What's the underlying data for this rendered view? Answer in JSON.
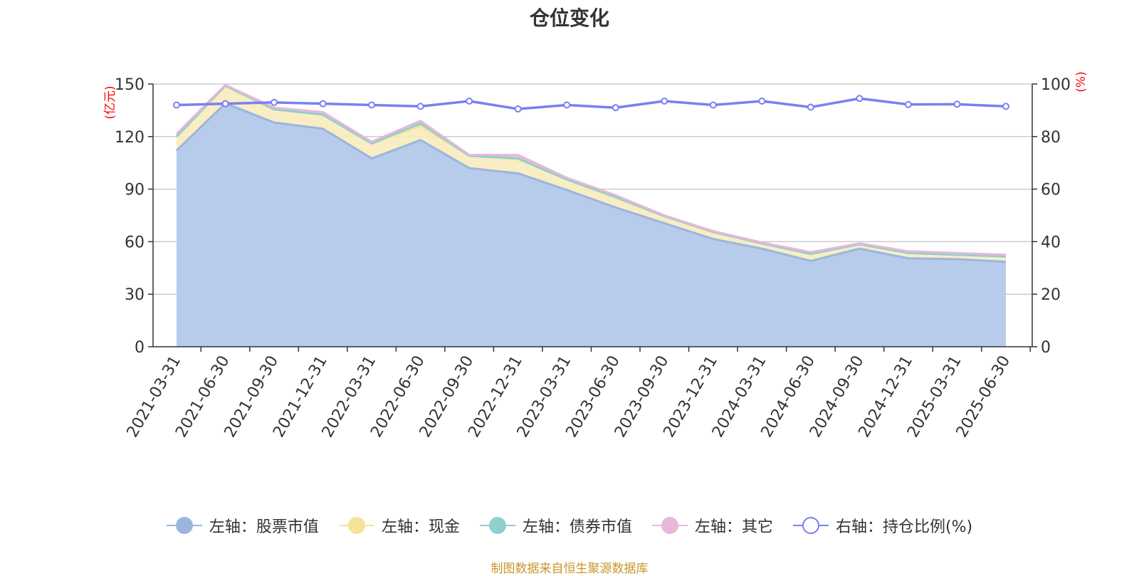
{
  "title": "仓位变化",
  "source_note": "制图数据来自恒生聚源数据库",
  "colors": {
    "stock": "#9bb5de",
    "stock_fill": "#b7cceb",
    "cash": "#f5e39a",
    "cash_fill": "#f8ebbd",
    "bond": "#8fd0cf",
    "other": "#e8b7da",
    "ratio": "#7b7ff2",
    "axis_label": "#ff0000",
    "grid": "#cccccc",
    "source": "#c8962c"
  },
  "legend": [
    {
      "label": "左轴：股票市值",
      "key": "stock",
      "marker": "filled"
    },
    {
      "label": "左轴：现金",
      "key": "cash",
      "marker": "filled"
    },
    {
      "label": "左轴：债券市值",
      "key": "bond",
      "marker": "filled"
    },
    {
      "label": "左轴：其它",
      "key": "other",
      "marker": "filled"
    },
    {
      "label": "右轴：持仓比例(%)",
      "key": "ratio",
      "marker": "hollow"
    }
  ],
  "chart_data": {
    "type": "area",
    "stacked": true,
    "title": "仓位变化",
    "x": [
      "2021-03-31",
      "2021-06-30",
      "2021-09-30",
      "2021-12-31",
      "2022-03-31",
      "2022-06-30",
      "2022-09-30",
      "2022-12-31",
      "2023-03-31",
      "2023-06-30",
      "2023-09-30",
      "2023-12-31",
      "2024-03-31",
      "2024-06-30",
      "2024-09-30",
      "2024-12-31",
      "2025-03-31",
      "2025-06-30"
    ],
    "y_left_label": "(亿元)",
    "y_right_label": "(%)",
    "y_left_range": [
      0,
      150
    ],
    "y_left_ticks": [
      0,
      30,
      60,
      90,
      120,
      150
    ],
    "y_right_range": [
      0,
      100
    ],
    "y_right_ticks": [
      0,
      20,
      40,
      60,
      80,
      100
    ],
    "grid": true,
    "legend_position": "bottom",
    "series": [
      {
        "name": "左轴：股票市值",
        "axis": "left",
        "values": [
          112,
          139,
          128,
          124.5,
          107.5,
          118,
          102,
          99,
          89.5,
          79.5,
          70.5,
          61.5,
          56,
          49,
          56,
          50.5,
          50,
          48.5
        ]
      },
      {
        "name": "左轴：现金",
        "axis": "left",
        "values": [
          7.5,
          10,
          7.5,
          8,
          8.5,
          8,
          7,
          8,
          6,
          5.5,
          4,
          4,
          3,
          4,
          2.5,
          3,
          2.5,
          3
        ]
      },
      {
        "name": "左轴：债券市值",
        "axis": "left",
        "values": [
          0.5,
          0,
          0,
          0,
          0,
          1.5,
          0,
          0.5,
          0,
          0.5,
          0,
          0,
          0,
          0,
          0,
          0,
          0,
          0
        ]
      },
      {
        "name": "左轴：其它",
        "axis": "left",
        "values": [
          1.5,
          0.5,
          1,
          1.5,
          1,
          1.5,
          0.5,
          2,
          1,
          1,
          0.5,
          0.5,
          0.5,
          1,
          0.5,
          1,
          1,
          1
        ]
      },
      {
        "name": "右轴：持仓比例(%)",
        "axis": "right",
        "type": "line",
        "values": [
          92,
          92.5,
          93,
          92.5,
          92,
          91.5,
          93.5,
          90.5,
          92,
          91,
          93.5,
          92,
          93.5,
          91.2,
          94.5,
          92.2,
          92.3,
          91.5
        ]
      }
    ]
  }
}
